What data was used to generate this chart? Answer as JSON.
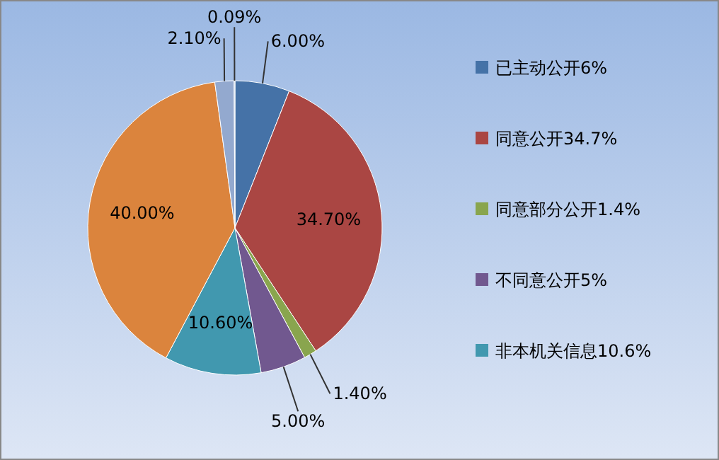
{
  "chart_data": {
    "type": "pie",
    "categories": [
      "已主动公开6%",
      "同意公开34.7%",
      "同意部分公开1.4%",
      "不同意公开5%",
      "非本机关信息10.6%",
      null,
      null,
      null
    ],
    "values": [
      6,
      34.7,
      1.4,
      5,
      10.6,
      40,
      2.1,
      0.09
    ],
    "value_labels": [
      "6.00%",
      "34.70%",
      "1.40%",
      "5.00%",
      "10.60%",
      "40.00%",
      "2.10%",
      "0.09%"
    ],
    "colors": [
      "#4572a7",
      "#aa4643",
      "#89a54e",
      "#71588f",
      "#4198af",
      "#db843d",
      "#93a9cf",
      "#b9cde5"
    ],
    "legend": "right"
  }
}
